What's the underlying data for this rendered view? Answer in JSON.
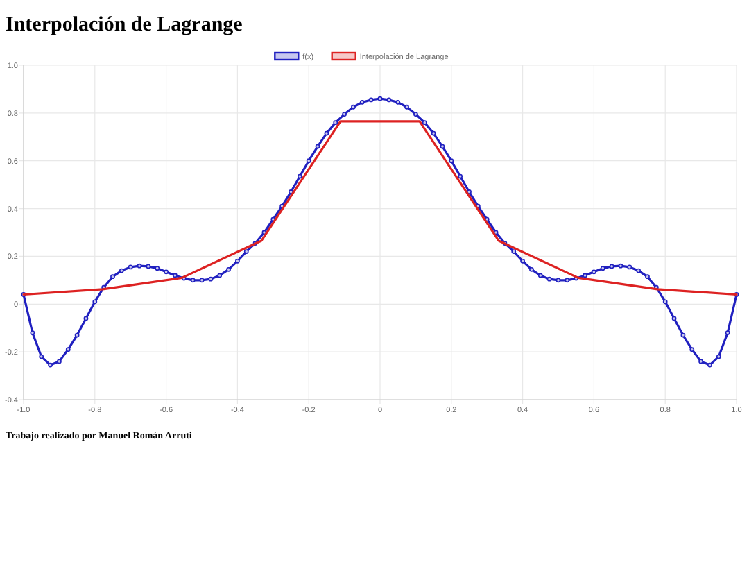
{
  "chart_data": {
    "type": "line",
    "title": "Interpolación de Lagrange",
    "annotations": [
      "Trabajo realizado por Manuel Román Arruti"
    ],
    "xlim": [
      -1,
      1
    ],
    "xticks": [
      {
        "value": -1,
        "label": "-1.0"
      },
      -0.8,
      -0.6,
      -0.4,
      -0.2,
      0,
      0.2,
      0.4,
      0.6,
      0.8,
      {
        "value": 1,
        "label": "1.0"
      }
    ],
    "ylim": [
      -0.4,
      1
    ],
    "yticks": [
      -0.4,
      -0.2,
      0,
      0.2,
      0.4,
      0.6,
      0.8,
      {
        "value": 1,
        "label": "1.0"
      }
    ],
    "grid": true,
    "legend": "top",
    "marker": "circle",
    "line_style": "solid",
    "series": [
      {
        "name": "f(x)",
        "color": "#2020c0",
        "x": [
          -1,
          -0.975,
          -0.95,
          -0.925,
          -0.9,
          -0.875,
          -0.85,
          -0.825,
          -0.8,
          -0.775,
          -0.75,
          -0.725,
          -0.7,
          -0.675,
          -0.65,
          -0.625,
          -0.6,
          -0.575,
          -0.55,
          -0.525,
          -0.5,
          -0.475,
          -0.45,
          -0.425,
          -0.4,
          -0.375,
          -0.35,
          -0.325,
          -0.3,
          -0.275,
          -0.25,
          -0.225,
          -0.2,
          -0.175,
          -0.15,
          -0.125,
          -0.1,
          -0.075,
          -0.05,
          -0.025,
          0,
          0.025,
          0.05,
          0.075,
          0.1,
          0.125,
          0.15,
          0.175,
          0.2,
          0.225,
          0.25,
          0.275,
          0.3,
          0.325,
          0.35,
          0.375,
          0.4,
          0.425,
          0.45,
          0.475,
          0.5,
          0.525,
          0.55,
          0.575,
          0.6,
          0.625,
          0.65,
          0.675,
          0.7,
          0.725,
          0.75,
          0.775,
          0.8,
          0.825,
          0.85,
          0.875,
          0.9,
          0.925,
          0.95,
          0.975,
          1
        ],
        "values": [
          0.04,
          -0.12,
          -0.22,
          -0.255,
          -0.24,
          -0.19,
          -0.13,
          -0.06,
          0.01,
          0.07,
          0.115,
          0.14,
          0.155,
          0.16,
          0.158,
          0.15,
          0.135,
          0.12,
          0.108,
          0.1,
          0.1,
          0.105,
          0.12,
          0.145,
          0.18,
          0.22,
          0.255,
          0.3,
          0.355,
          0.41,
          0.47,
          0.535,
          0.6,
          0.66,
          0.715,
          0.76,
          0.795,
          0.825,
          0.845,
          0.855,
          0.86,
          0.855,
          0.845,
          0.825,
          0.795,
          0.76,
          0.715,
          0.66,
          0.6,
          0.535,
          0.47,
          0.41,
          0.355,
          0.3,
          0.255,
          0.22,
          0.18,
          0.145,
          0.12,
          0.105,
          0.1,
          0.1,
          0.108,
          0.12,
          0.135,
          0.15,
          0.158,
          0.16,
          0.155,
          0.14,
          0.115,
          0.07,
          0.01,
          -0.06,
          -0.13,
          -0.19,
          -0.24,
          -0.255,
          -0.22,
          -0.12,
          0.04
        ]
      },
      {
        "name": "Interpolación de Lagrange",
        "color": "#dd2222",
        "marker": "none",
        "x": [
          -1,
          -0.778,
          -0.556,
          -0.333,
          -0.111,
          0.111,
          0.333,
          0.556,
          0.778,
          1
        ],
        "values": [
          0.04,
          0.062,
          0.11,
          0.265,
          0.765,
          0.765,
          0.265,
          0.11,
          0.062,
          0.04
        ]
      }
    ]
  }
}
